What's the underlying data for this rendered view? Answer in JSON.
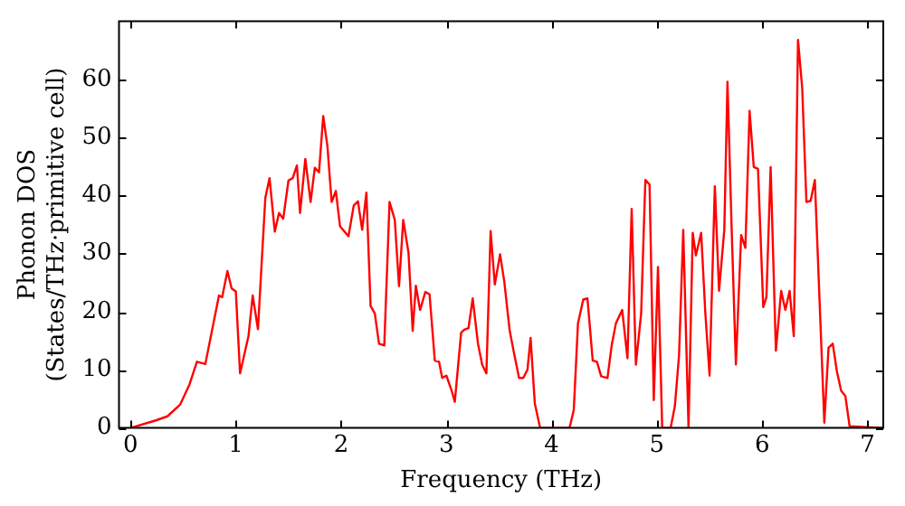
{
  "chart_data": {
    "type": "line",
    "xlabel": "Frequency (THz)",
    "ylabel": "Phonon DOS\n(States/THz·primitive cell)",
    "xlim": [
      -0.11,
      7.15
    ],
    "ylim": [
      0,
      70
    ],
    "xticks": [
      0,
      1,
      2,
      3,
      4,
      5,
      6,
      7
    ],
    "yticks": [
      0,
      10,
      20,
      30,
      40,
      50,
      60
    ],
    "grid": false,
    "legend": false,
    "marker": "none",
    "line_style": "solid",
    "series": [
      {
        "color": "#ff0000",
        "x": [
          0,
          0.24,
          0.35,
          0.47,
          0.56,
          0.63,
          0.71,
          0.84,
          0.87,
          0.92,
          0.96,
          1.0,
          1.04,
          1.12,
          1.16,
          1.21,
          1.28,
          1.32,
          1.37,
          1.41,
          1.45,
          1.5,
          1.54,
          1.58,
          1.61,
          1.66,
          1.71,
          1.75,
          1.79,
          1.83,
          1.87,
          1.91,
          1.95,
          1.99,
          2.07,
          2.12,
          2.16,
          2.2,
          2.24,
          2.28,
          2.32,
          2.36,
          2.41,
          2.46,
          2.51,
          2.55,
          2.59,
          2.64,
          2.68,
          2.71,
          2.75,
          2.8,
          2.84,
          2.89,
          2.93,
          2.96,
          3.0,
          3.05,
          3.08,
          3.14,
          3.17,
          3.21,
          3.25,
          3.3,
          3.34,
          3.38,
          3.42,
          3.46,
          3.51,
          3.55,
          3.6,
          3.64,
          3.69,
          3.73,
          3.77,
          3.8,
          3.84,
          3.89,
          4.17,
          4.21,
          4.25,
          4.3,
          4.34,
          4.39,
          4.43,
          4.47,
          4.53,
          4.57,
          4.61,
          4.67,
          4.72,
          4.76,
          4.8,
          4.85,
          4.89,
          4.93,
          4.97,
          5.01,
          5.05,
          5.13,
          5.17,
          5.21,
          5.25,
          5.3,
          5.34,
          5.37,
          5.42,
          5.46,
          5.5,
          5.55,
          5.59,
          5.64,
          5.67,
          5.71,
          5.75,
          5.8,
          5.84,
          5.88,
          5.92,
          5.96,
          6.01,
          6.04,
          6.08,
          6.13,
          6.18,
          6.22,
          6.26,
          6.3,
          6.34,
          6.38,
          6.42,
          6.46,
          6.5,
          6.59,
          6.63,
          6.67,
          6.71,
          6.75,
          6.79,
          6.83,
          7.14
        ],
        "values": [
          0,
          1.3,
          2,
          4,
          7.5,
          11.4,
          11,
          22.8,
          22.5,
          27,
          24,
          23.5,
          9.4,
          15.8,
          22.8,
          17,
          39.6,
          43,
          33.8,
          37,
          36,
          42.6,
          43,
          45.2,
          37,
          46.3,
          38.9,
          44.8,
          44,
          53.7,
          48.5,
          38.9,
          40.8,
          34.7,
          33,
          38.3,
          39,
          34.1,
          40.5,
          21,
          19.7,
          14.5,
          14.2,
          38.9,
          35.8,
          24.4,
          35.8,
          30.2,
          16.7,
          24.5,
          20.3,
          23.4,
          23,
          11.6,
          11.4,
          8.6,
          9,
          6.4,
          4.5,
          16.4,
          16.9,
          17.2,
          22.3,
          14.5,
          10.9,
          9.4,
          33.9,
          24.7,
          29.9,
          25.2,
          16.9,
          13.1,
          8.6,
          8.6,
          10,
          15.5,
          4.2,
          0,
          0,
          3.1,
          18,
          22.1,
          22.3,
          11.6,
          11.4,
          8.9,
          8.6,
          14.2,
          18,
          20.3,
          12,
          37.7,
          10.9,
          19.7,
          42.7,
          41.9,
          4.8,
          27.7,
          0,
          0,
          3.7,
          12.5,
          34.1,
          0,
          33.6,
          29.7,
          33.6,
          19.7,
          9,
          41.6,
          23.6,
          34.1,
          59.6,
          34.1,
          10.9,
          33.2,
          31,
          54.6,
          44.9,
          44.6,
          20.8,
          22.5,
          44.9,
          13.3,
          23.6,
          20.3,
          23.6,
          15.8,
          66.8,
          58.5,
          38.9,
          39.1,
          42.7,
          0.9,
          13.8,
          14.5,
          9.7,
          6.4,
          5.5,
          0.3,
          0
        ]
      }
    ]
  }
}
